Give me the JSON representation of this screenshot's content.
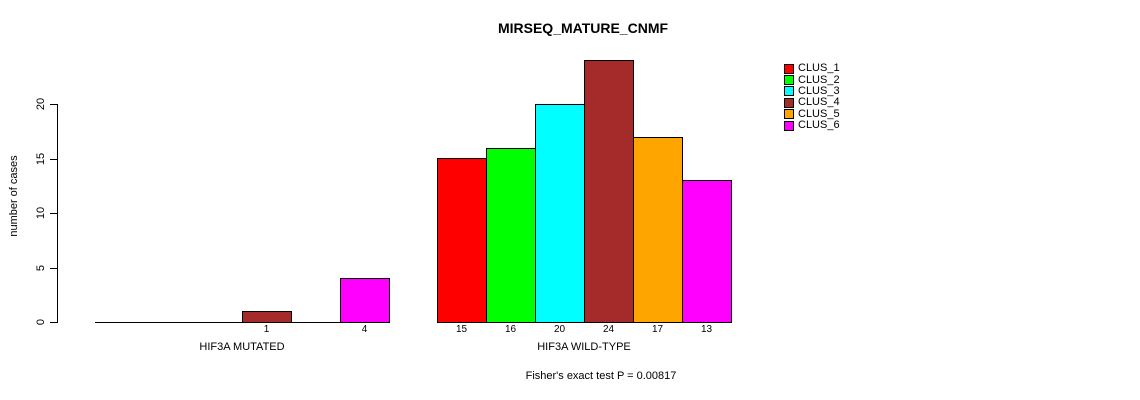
{
  "chart_data": {
    "type": "bar",
    "title": "MIRSEQ_MATURE_CNMF",
    "ylabel": "number of cases",
    "xlabel": "",
    "yticks": [
      0,
      5,
      10,
      15,
      20
    ],
    "ylim": [
      0,
      24
    ],
    "grid": false,
    "legend_position": "right",
    "annotation": "Fisher's exact test P = 0.00817",
    "series": [
      {
        "name": "CLUS_1",
        "color": "#FF0000"
      },
      {
        "name": "CLUS_2",
        "color": "#00FF00"
      },
      {
        "name": "CLUS_3",
        "color": "#00FFFF"
      },
      {
        "name": "CLUS_4",
        "color": "#A52A2A"
      },
      {
        "name": "CLUS_5",
        "color": "#FFA500"
      },
      {
        "name": "CLUS_6",
        "color": "#FF00FF"
      }
    ],
    "groups": [
      {
        "label": "HIF3A MUTATED",
        "values": [
          0,
          0,
          0,
          1,
          0,
          4
        ],
        "bar_labels": [
          "",
          "",
          "",
          "1",
          "",
          "4"
        ]
      },
      {
        "label": "HIF3A WILD-TYPE",
        "values": [
          15,
          16,
          20,
          24,
          17,
          13
        ],
        "bar_labels": [
          "15",
          "16",
          "20",
          "24",
          "17",
          "13"
        ]
      }
    ],
    "colors": {
      "background": "#FFFFFF",
      "axis": "#000000",
      "text": "#000000"
    }
  }
}
